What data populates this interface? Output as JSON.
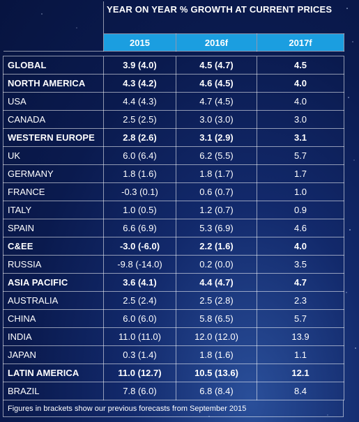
{
  "header": {
    "title": "YEAR ON YEAR % GROWTH AT CURRENT PRICES",
    "years": [
      "2015",
      "2016f",
      "2017f"
    ]
  },
  "rows": [
    {
      "region": "GLOBAL",
      "v2015": "3.9 (4.0)",
      "v2016": "4.5 (4.7)",
      "v2017": "4.5",
      "bold": true
    },
    {
      "region": "NORTH AMERICA",
      "v2015": "4.3 (4.2)",
      "v2016": "4.6 (4.5)",
      "v2017": "4.0",
      "bold": true
    },
    {
      "region": "USA",
      "v2015": "4.4 (4.3)",
      "v2016": "4.7 (4.5)",
      "v2017": "4.0",
      "bold": false
    },
    {
      "region": "CANADA",
      "v2015": "2.5 (2.5)",
      "v2016": "3.0 (3.0)",
      "v2017": "3.0",
      "bold": false
    },
    {
      "region": "WESTERN EUROPE",
      "v2015": "2.8 (2.6)",
      "v2016": "3.1 (2.9)",
      "v2017": "3.1",
      "bold": true
    },
    {
      "region": "UK",
      "v2015": "6.0 (6.4)",
      "v2016": "6.2 (5.5)",
      "v2017": "5.7",
      "bold": false
    },
    {
      "region": "GERMANY",
      "v2015": "1.8 (1.6)",
      "v2016": "1.8 (1.7)",
      "v2017": "1.7",
      "bold": false
    },
    {
      "region": "FRANCE",
      "v2015": "-0.3 (0.1)",
      "v2016": "0.6 (0.7)",
      "v2017": "1.0",
      "bold": false
    },
    {
      "region": "ITALY",
      "v2015": "1.0 (0.5)",
      "v2016": "1.2 (0.7)",
      "v2017": "0.9",
      "bold": false
    },
    {
      "region": "SPAIN",
      "v2015": "6.6 (6.9)",
      "v2016": "5.3 (6.9)",
      "v2017": "4.6",
      "bold": false
    },
    {
      "region": "C&EE",
      "v2015": "-3.0 (-6.0)",
      "v2016": "2.2 (1.6)",
      "v2017": "4.0",
      "bold": true
    },
    {
      "region": "RUSSIA",
      "v2015": "-9.8 (-14.0)",
      "v2016": "0.2 (0.0)",
      "v2017": "3.5",
      "bold": false
    },
    {
      "region": "ASIA PACIFIC",
      "v2015": "3.6 (4.1)",
      "v2016": "4.4 (4.7)",
      "v2017": "4.7",
      "bold": true
    },
    {
      "region": "AUSTRALIA",
      "v2015": "2.5 (2.4)",
      "v2016": "2.5 (2.8)",
      "v2017": "2.3",
      "bold": false
    },
    {
      "region": "CHINA",
      "v2015": "6.0 (6.0)",
      "v2016": "5.8 (6.5)",
      "v2017": "5.7",
      "bold": false
    },
    {
      "region": "INDIA",
      "v2015": "11.0 (11.0)",
      "v2016": "12.0 (12.0)",
      "v2017": "13.9",
      "bold": false
    },
    {
      "region": "JAPAN",
      "v2015": "0.3 (1.4)",
      "v2016": "1.8 (1.6)",
      "v2017": "1.1",
      "bold": false
    },
    {
      "region": "LATIN AMERICA",
      "v2015": "11.0 (12.7)",
      "v2016": "10.5 (13.6)",
      "v2017": "12.1",
      "bold": true
    },
    {
      "region": "BRAZIL",
      "v2015": "7.8 (6.0)",
      "v2016": "6.8 (8.4)",
      "v2017": "8.4",
      "bold": false
    }
  ],
  "footnote": "Figures in brackets show our previous forecasts from September 2015",
  "colors": {
    "header_blue": "#1b9ee0",
    "background": "#0a1a4e",
    "text": "#ffffff"
  }
}
